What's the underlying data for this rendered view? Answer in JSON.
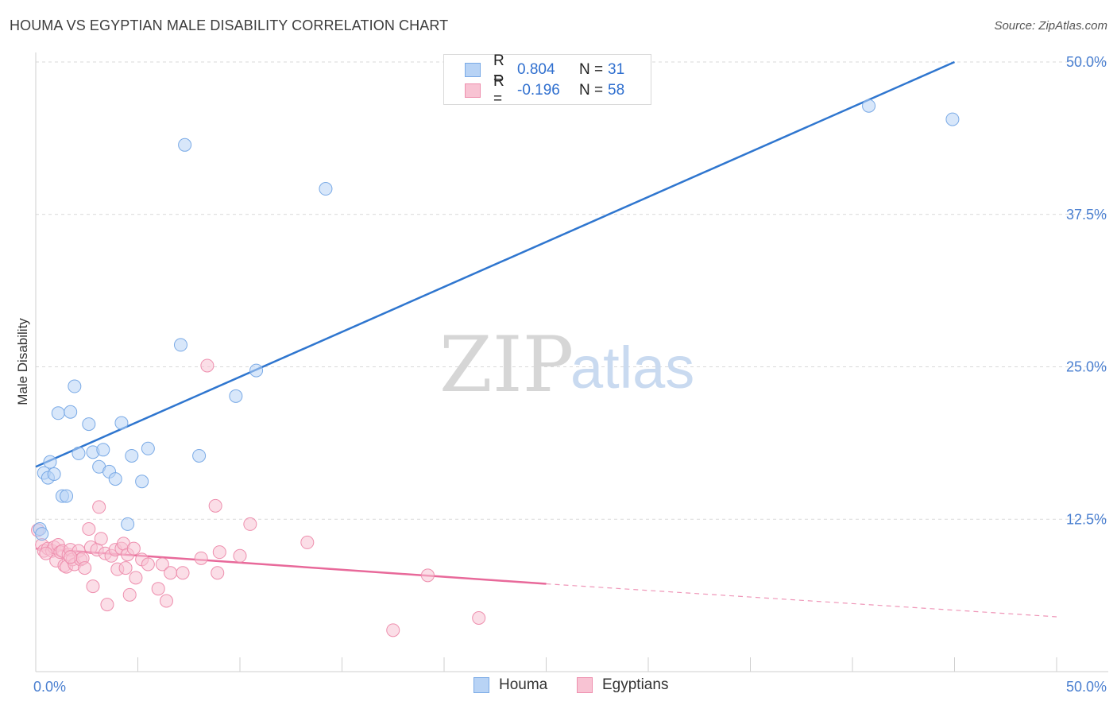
{
  "header": {
    "title": "HOUMA VS EGYPTIAN MALE DISABILITY CORRELATION CHART",
    "source": "Source: ZipAtlas.com"
  },
  "legend": {
    "rows": [
      {
        "r_label": "R = ",
        "r_value": "0.804",
        "n_label": "N = ",
        "n_value": "31"
      },
      {
        "r_label": "R = ",
        "r_value": "-0.196",
        "n_label": "N = ",
        "n_value": "58"
      }
    ]
  },
  "bottom_legend": {
    "houma": "Houma",
    "egyptians": "Egyptians"
  },
  "watermark": {
    "zip": "ZIP",
    "atlas": "atlas"
  },
  "colors": {
    "houma_fill": "#b8d3f5",
    "houma_stroke": "#7aaae6",
    "houma_line": "#2f76cf",
    "egypt_fill": "#f8c3d3",
    "egypt_stroke": "#ee8fae",
    "egypt_line": "#e8699a",
    "axis_text": "#4a7fd0",
    "grid": "#d9d9d9"
  },
  "chart_data": {
    "type": "scatter",
    "title": "HOUMA VS EGYPTIAN MALE DISABILITY CORRELATION CHART",
    "xlabel": "",
    "ylabel": "Male Disability",
    "xlim": [
      0,
      50
    ],
    "ylim": [
      0,
      50
    ],
    "x_tick_labels": [
      "0.0%",
      "50.0%"
    ],
    "y_ticks": [
      12.5,
      25.0,
      37.5,
      50.0
    ],
    "y_tick_labels": [
      "12.5%",
      "25.0%",
      "37.5%",
      "50.0%"
    ],
    "grid": true,
    "series": [
      {
        "name": "Houma",
        "r": 0.804,
        "n": 31,
        "trend": {
          "x": [
            0,
            45
          ],
          "y": [
            16.8,
            50.0
          ],
          "dashed_to": null
        },
        "points": [
          [
            0.2,
            11.7
          ],
          [
            0.4,
            16.3
          ],
          [
            0.6,
            15.9
          ],
          [
            0.7,
            17.2
          ],
          [
            0.9,
            16.2
          ],
          [
            1.1,
            21.2
          ],
          [
            1.3,
            14.4
          ],
          [
            1.5,
            14.4
          ],
          [
            1.7,
            21.3
          ],
          [
            1.9,
            23.4
          ],
          [
            2.1,
            17.9
          ],
          [
            2.6,
            20.3
          ],
          [
            2.8,
            18.0
          ],
          [
            3.1,
            16.8
          ],
          [
            3.3,
            18.2
          ],
          [
            3.6,
            16.4
          ],
          [
            3.9,
            15.8
          ],
          [
            4.2,
            20.4
          ],
          [
            4.5,
            12.1
          ],
          [
            4.7,
            17.7
          ],
          [
            5.2,
            15.6
          ],
          [
            5.5,
            18.3
          ],
          [
            7.1,
            26.8
          ],
          [
            7.3,
            43.2
          ],
          [
            8.0,
            17.7
          ],
          [
            9.8,
            22.6
          ],
          [
            10.8,
            24.7
          ],
          [
            14.2,
            39.6
          ],
          [
            40.8,
            46.4
          ],
          [
            44.9,
            45.3
          ],
          [
            0.3,
            11.3
          ]
        ]
      },
      {
        "name": "Egyptians",
        "r": -0.196,
        "n": 58,
        "trend": {
          "x": [
            0,
            25
          ],
          "y": [
            10.1,
            7.2
          ],
          "dashed_to": [
            50,
            4.5
          ]
        },
        "points": [
          [
            0.1,
            11.6
          ],
          [
            0.3,
            10.4
          ],
          [
            0.4,
            9.9
          ],
          [
            0.6,
            10.1
          ],
          [
            0.8,
            9.9
          ],
          [
            0.9,
            10.2
          ],
          [
            1.0,
            9.1
          ],
          [
            1.1,
            10.4
          ],
          [
            1.2,
            9.8
          ],
          [
            1.3,
            9.9
          ],
          [
            1.4,
            8.7
          ],
          [
            1.5,
            8.6
          ],
          [
            1.6,
            9.6
          ],
          [
            1.7,
            10.0
          ],
          [
            1.8,
            9.2
          ],
          [
            1.9,
            8.8
          ],
          [
            2.1,
            9.9
          ],
          [
            2.2,
            9.2
          ],
          [
            2.3,
            9.3
          ],
          [
            2.4,
            8.5
          ],
          [
            2.6,
            11.7
          ],
          [
            2.7,
            10.2
          ],
          [
            2.8,
            7.0
          ],
          [
            3.0,
            10.0
          ],
          [
            3.1,
            13.5
          ],
          [
            3.2,
            10.9
          ],
          [
            3.4,
            9.7
          ],
          [
            3.5,
            5.5
          ],
          [
            3.7,
            9.5
          ],
          [
            3.9,
            10.0
          ],
          [
            4.0,
            8.4
          ],
          [
            4.2,
            10.1
          ],
          [
            4.3,
            10.5
          ],
          [
            4.4,
            8.5
          ],
          [
            4.5,
            9.6
          ],
          [
            4.6,
            6.3
          ],
          [
            4.8,
            10.1
          ],
          [
            4.9,
            7.7
          ],
          [
            5.2,
            9.2
          ],
          [
            5.5,
            8.8
          ],
          [
            6.0,
            6.8
          ],
          [
            6.2,
            8.8
          ],
          [
            6.4,
            5.8
          ],
          [
            6.6,
            8.1
          ],
          [
            7.2,
            8.1
          ],
          [
            8.1,
            9.3
          ],
          [
            8.4,
            25.1
          ],
          [
            8.8,
            13.6
          ],
          [
            8.9,
            8.1
          ],
          [
            9.0,
            9.8
          ],
          [
            10.0,
            9.5
          ],
          [
            10.5,
            12.1
          ],
          [
            13.3,
            10.6
          ],
          [
            17.5,
            3.4
          ],
          [
            19.2,
            7.9
          ],
          [
            21.7,
            4.4
          ],
          [
            0.5,
            9.7
          ],
          [
            1.7,
            9.4
          ]
        ]
      }
    ]
  }
}
